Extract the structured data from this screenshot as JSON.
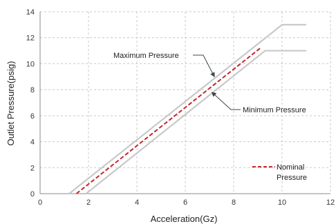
{
  "chart_data": {
    "type": "line",
    "title": "",
    "xlabel": "Acceleration(Gz)",
    "ylabel": "Outlet Pressure(psig)",
    "xlim": [
      0,
      12
    ],
    "ylim": [
      0,
      14
    ],
    "xticks": [
      0,
      2,
      4,
      6,
      8,
      10,
      12
    ],
    "yticks": [
      0,
      2,
      4,
      6,
      8,
      10,
      12,
      14
    ],
    "grid": true,
    "series": [
      {
        "name": "Maximum Pressure",
        "color": "#c8c8c8",
        "style": "solid",
        "x": [
          1.2,
          10,
          11
        ],
        "y": [
          0,
          13,
          13
        ]
      },
      {
        "name": "Minimum Pressure",
        "color": "#c8c8c8",
        "style": "solid",
        "x": [
          1.9,
          9.3,
          11
        ],
        "y": [
          0,
          11,
          11
        ]
      },
      {
        "name": "Nominal Pressure",
        "color": "#c0282d",
        "style": "dashed",
        "x": [
          1.5,
          9.1
        ],
        "y": [
          0,
          11.2
        ]
      }
    ],
    "annotations": [
      {
        "text": "Maximum Pressure",
        "target": [
          7.2,
          9.0
        ]
      },
      {
        "text": "Minimum Pressure",
        "target": [
          7.1,
          7.8
        ]
      }
    ],
    "legend": {
      "position": "bottom-right",
      "line1": "Nominal",
      "line2": "Pressure"
    }
  }
}
